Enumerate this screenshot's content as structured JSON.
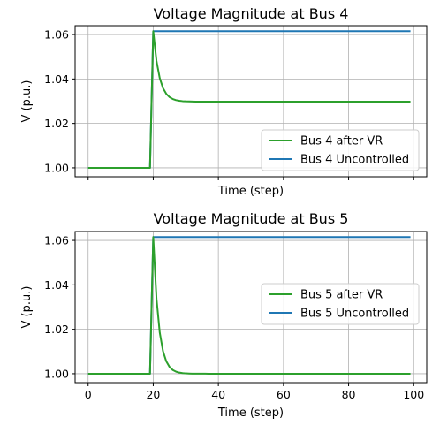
{
  "chart_data": [
    {
      "type": "line",
      "title": "Voltage Magnitude at Bus 4",
      "xlabel": "Time (step)",
      "ylabel": "V (p.u.)",
      "xlim": [
        -4,
        104
      ],
      "ylim": [
        0.996,
        1.064
      ],
      "xticks": [
        0,
        20,
        40,
        60,
        80,
        100
      ],
      "xtick_labels_visible": false,
      "yticks": [
        1.0,
        1.02,
        1.04,
        1.06
      ],
      "ytick_labels": [
        "1.00",
        "1.02",
        "1.04",
        "1.06"
      ],
      "grid": true,
      "legend_position": "lower-right",
      "series": [
        {
          "name": "Bus 4 after VR",
          "color": "#2ca02c",
          "initial": 1.0,
          "step_at": 19,
          "peak": 1.0615,
          "final": 1.0298,
          "decay_rate": 0.55
        },
        {
          "name": "Bus 4 Uncontrolled",
          "color": "#1f77b4",
          "initial": 1.0,
          "step_at": 19,
          "final": 1.0615
        }
      ]
    },
    {
      "type": "line",
      "title": "Voltage Magnitude at Bus 5",
      "xlabel": "Time (step)",
      "ylabel": "V (p.u.)",
      "xlim": [
        -4,
        104
      ],
      "ylim": [
        0.996,
        1.064
      ],
      "xticks": [
        0,
        20,
        40,
        60,
        80,
        100
      ],
      "xtick_labels": [
        "0",
        "20",
        "40",
        "60",
        "80",
        "100"
      ],
      "xtick_labels_visible": true,
      "yticks": [
        1.0,
        1.02,
        1.04,
        1.06
      ],
      "ytick_labels": [
        "1.00",
        "1.02",
        "1.04",
        "1.06"
      ],
      "grid": true,
      "legend_position": "center-right",
      "series": [
        {
          "name": "Bus 5 after VR",
          "color": "#2ca02c",
          "initial": 1.0,
          "step_at": 19,
          "peak": 1.0615,
          "final": 1.0,
          "decay_rate": 0.6
        },
        {
          "name": "Bus 5 Uncontrolled",
          "color": "#1f77b4",
          "initial": 1.0,
          "step_at": 19,
          "final": 1.0615
        }
      ]
    }
  ]
}
